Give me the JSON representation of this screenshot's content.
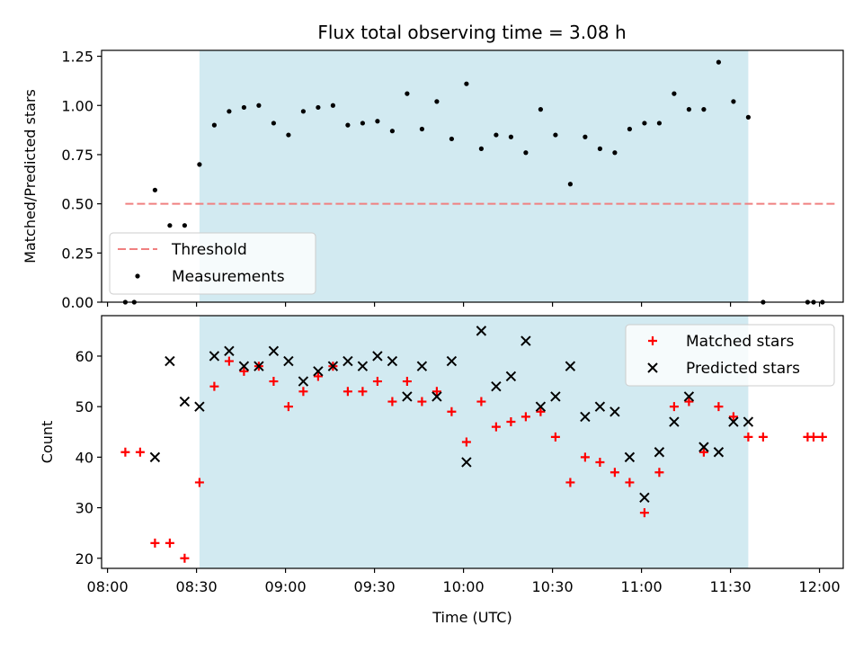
{
  "title": "Flux total observing time = 3.08 h",
  "chart_data": [
    {
      "type": "scatter",
      "name": "ratio-panel",
      "ylabel": "Matched/Predicted stars",
      "xlabel": "",
      "xlim": [
        "07:58",
        "12:08"
      ],
      "ylim": [
        0,
        1.28
      ],
      "yticks": [
        0,
        0.25,
        0.5,
        0.75,
        1.0,
        1.25
      ],
      "ytick_labels": [
        "0.00",
        "0.25",
        "0.50",
        "0.75",
        "1.00",
        "1.25"
      ],
      "xticks": [
        "08:00",
        "08:30",
        "09:00",
        "09:30",
        "10:00",
        "10:30",
        "11:00",
        "11:30",
        "12:00"
      ],
      "shaded_span": [
        "08:31",
        "11:36"
      ],
      "threshold": {
        "value": 0.5,
        "x_start": "08:06",
        "x_end": "12:06"
      },
      "legend": {
        "position": "lower-left",
        "entries": [
          "Threshold",
          "Measurements"
        ]
      },
      "series": [
        {
          "name": "Measurements",
          "x": [
            "08:06",
            "08:09",
            "08:16",
            "08:21",
            "08:26",
            "08:31",
            "08:36",
            "08:41",
            "08:46",
            "08:51",
            "08:56",
            "09:01",
            "09:06",
            "09:11",
            "09:16",
            "09:21",
            "09:26",
            "09:31",
            "09:36",
            "09:41",
            "09:46",
            "09:51",
            "09:56",
            "10:01",
            "10:06",
            "10:11",
            "10:16",
            "10:21",
            "10:26",
            "10:31",
            "10:36",
            "10:41",
            "10:46",
            "10:51",
            "10:56",
            "11:01",
            "11:06",
            "11:11",
            "11:16",
            "11:21",
            "11:26",
            "11:31",
            "11:36",
            "11:41",
            "11:56",
            "11:58",
            "12:01"
          ],
          "y": [
            0,
            0,
            0.57,
            0.39,
            0.39,
            0.7,
            0.9,
            0.97,
            0.99,
            1.0,
            0.91,
            0.85,
            0.97,
            0.99,
            1.0,
            0.9,
            0.91,
            0.92,
            0.87,
            1.06,
            0.88,
            1.02,
            0.83,
            1.11,
            0.78,
            0.85,
            0.84,
            0.76,
            0.98,
            0.85,
            0.6,
            0.84,
            0.78,
            0.76,
            0.88,
            0.91,
            0.91,
            1.06,
            0.98,
            0.98,
            1.22,
            1.02,
            0.94,
            0,
            0,
            0,
            0
          ]
        }
      ]
    },
    {
      "type": "scatter",
      "name": "count-panel",
      "ylabel": "Count",
      "xlabel": "Time (UTC)",
      "xlim": [
        "07:58",
        "12:08"
      ],
      "ylim": [
        18,
        68
      ],
      "yticks": [
        20,
        30,
        40,
        50,
        60
      ],
      "xticks": [
        "08:00",
        "08:30",
        "09:00",
        "09:30",
        "10:00",
        "10:30",
        "11:00",
        "11:30",
        "12:00"
      ],
      "shaded_span": [
        "08:31",
        "11:36"
      ],
      "legend": {
        "position": "top-right",
        "entries": [
          "Matched stars",
          "Predicted stars"
        ]
      },
      "series": [
        {
          "name": "Matched stars",
          "x": [
            "08:06",
            "08:11",
            "08:16",
            "08:21",
            "08:26",
            "08:31",
            "08:36",
            "08:41",
            "08:46",
            "08:51",
            "08:56",
            "09:01",
            "09:06",
            "09:11",
            "09:16",
            "09:21",
            "09:26",
            "09:31",
            "09:36",
            "09:41",
            "09:46",
            "09:51",
            "09:56",
            "10:01",
            "10:06",
            "10:11",
            "10:16",
            "10:21",
            "10:26",
            "10:31",
            "10:36",
            "10:41",
            "10:46",
            "10:51",
            "10:56",
            "11:01",
            "11:06",
            "11:11",
            "11:16",
            "11:21",
            "11:26",
            "11:31",
            "11:36",
            "11:41",
            "11:56",
            "11:58",
            "12:01"
          ],
          "y": [
            41,
            41,
            23,
            23,
            20,
            35,
            54,
            59,
            57,
            58,
            55,
            50,
            53,
            56,
            58,
            53,
            53,
            55,
            51,
            55,
            51,
            53,
            49,
            43,
            51,
            46,
            47,
            48,
            49,
            44,
            35,
            40,
            39,
            37,
            35,
            29,
            37,
            50,
            51,
            41,
            50,
            48,
            44,
            44,
            44,
            44,
            44
          ]
        },
        {
          "name": "Predicted stars",
          "x": [
            "08:16",
            "08:21",
            "08:26",
            "08:31",
            "08:36",
            "08:41",
            "08:46",
            "08:51",
            "08:56",
            "09:01",
            "09:06",
            "09:11",
            "09:16",
            "09:21",
            "09:26",
            "09:31",
            "09:36",
            "09:41",
            "09:46",
            "09:51",
            "09:56",
            "10:01",
            "10:06",
            "10:11",
            "10:16",
            "10:21",
            "10:26",
            "10:31",
            "10:36",
            "10:41",
            "10:46",
            "10:51",
            "10:56",
            "11:01",
            "11:06",
            "11:11",
            "11:16",
            "11:21",
            "11:26",
            "11:31",
            "11:36"
          ],
          "y": [
            40,
            59,
            51,
            50,
            60,
            61,
            58,
            58,
            61,
            59,
            55,
            57,
            58,
            59,
            58,
            60,
            59,
            52,
            58,
            52,
            59,
            39,
            65,
            54,
            56,
            63,
            50,
            52,
            58,
            48,
            50,
            49,
            40,
            32,
            41,
            47,
            52,
            42,
            41,
            47,
            47
          ]
        }
      ]
    }
  ],
  "colors": {
    "span": "#add8e6",
    "threshold": "#f08080",
    "matched": "#ff0000",
    "predicted": "#000000",
    "measurement": "#000000"
  }
}
